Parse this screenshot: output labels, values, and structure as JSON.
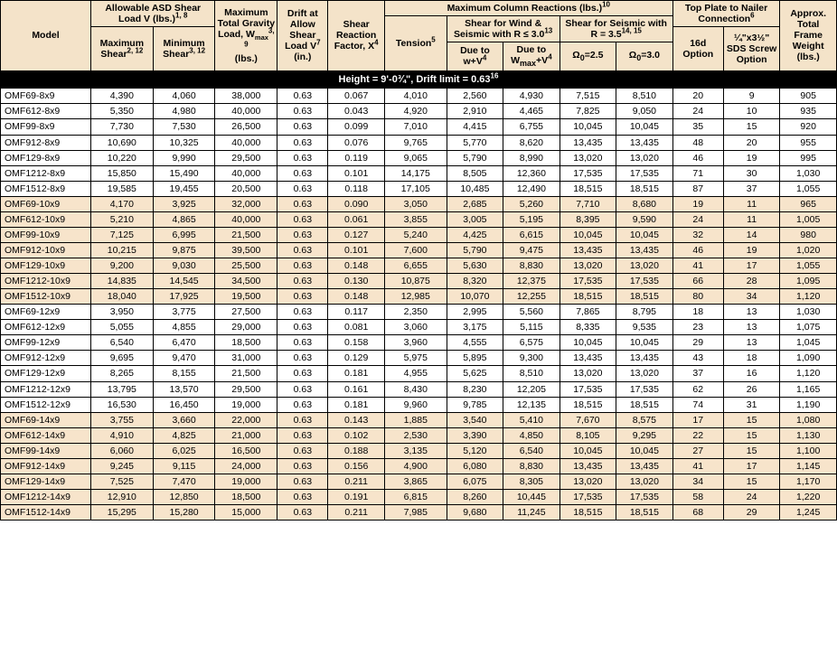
{
  "headers": {
    "model": "Model",
    "allowShear": "Allowable ASD Shear Load V (lbs.)",
    "allowShear_sup": "1, 8",
    "maxShear": "Maximum Shear",
    "maxShear_sup": "2, 12",
    "minShear": "Minimum Shear",
    "minShear_sup": "3, 12",
    "gravity_l1": "Maximum Total Gravity Load, W",
    "gravity_sub": "max",
    "gravity_sup": "3, 9",
    "gravity_l2": "(lbs.)",
    "drift_l1": "Drift at Allow Shear Load V",
    "drift_sup": "7",
    "drift_l2": "(in.)",
    "srf_l1": "Shear Reaction Factor, X",
    "srf_sup": "4",
    "maxCol": "Maximum Column Reactions (lbs.)",
    "maxCol_sup": "10",
    "tension": "Tension",
    "tension_sup": "5",
    "windSeis_l1": "Shear for Wind & Seismic with R ≤ 3.0",
    "windSeis_sup": "13",
    "due_wV": "Due to w+V",
    "due_wV_sup": "4",
    "due_wmaxV_l1": "Due to W",
    "due_wmaxV_sub": "max",
    "due_wmaxV_l2": "+V",
    "due_wmaxV_sup": "4",
    "seis35_l1": "Shear for Seismic with R = 3.5",
    "seis35_sup": "14, 15",
    "omega25_pre": "Ω",
    "omega25_sub": "0",
    "omega25_post": "=2.5",
    "omega30_pre": "Ω",
    "omega30_sub": "0",
    "omega30_post": "=3.0",
    "topPlate": "Top Plate to Nailer Connection",
    "topPlate_sup": "6",
    "opt16d": "16d Option",
    "sds": "¼\"x3½\" SDS Screw Option",
    "weight": "Approx. Total Frame Weight (lbs.)"
  },
  "section": "Height = 9'-0¾\", Drift limit = 0.63",
  "section_sup": "16",
  "styling": {
    "header_bg": "#f4e3c9",
    "shade_bg": "#f7e4cb",
    "section_bg": "#000000",
    "section_fg": "#ffffff",
    "border": "#000000",
    "font": "Arial",
    "header_fontsize": 10.5,
    "body_fontsize": 10.5
  },
  "groups": [
    {
      "shade": false,
      "rows": [
        [
          "OMF69-8x9",
          "4,390",
          "4,060",
          "38,000",
          "0.63",
          "0.067",
          "4,010",
          "2,560",
          "4,930",
          "7,515",
          "8,510",
          "20",
          "9",
          "905"
        ],
        [
          "OMF612-8x9",
          "5,350",
          "4,980",
          "40,000",
          "0.63",
          "0.043",
          "4,920",
          "2,910",
          "4,465",
          "7,825",
          "9,050",
          "24",
          "10",
          "935"
        ],
        [
          "OMF99-8x9",
          "7,730",
          "7,530",
          "26,500",
          "0.63",
          "0.099",
          "7,010",
          "4,415",
          "6,755",
          "10,045",
          "10,045",
          "35",
          "15",
          "920"
        ],
        [
          "OMF912-8x9",
          "10,690",
          "10,325",
          "40,000",
          "0.63",
          "0.076",
          "9,765",
          "5,770",
          "8,620",
          "13,435",
          "13,435",
          "48",
          "20",
          "955"
        ],
        [
          "OMF129-8x9",
          "10,220",
          "9,990",
          "29,500",
          "0.63",
          "0.119",
          "9,065",
          "5,790",
          "8,990",
          "13,020",
          "13,020",
          "46",
          "19",
          "995"
        ],
        [
          "OMF1212-8x9",
          "15,850",
          "15,490",
          "40,000",
          "0.63",
          "0.101",
          "14,175",
          "8,505",
          "12,360",
          "17,535",
          "17,535",
          "71",
          "30",
          "1,030"
        ],
        [
          "OMF1512-8x9",
          "19,585",
          "19,455",
          "20,500",
          "0.63",
          "0.118",
          "17,105",
          "10,485",
          "12,490",
          "18,515",
          "18,515",
          "87",
          "37",
          "1,055"
        ]
      ]
    },
    {
      "shade": true,
      "rows": [
        [
          "OMF69-10x9",
          "4,170",
          "3,925",
          "32,000",
          "0.63",
          "0.090",
          "3,050",
          "2,685",
          "5,260",
          "7,710",
          "8,680",
          "19",
          "11",
          "965"
        ],
        [
          "OMF612-10x9",
          "5,210",
          "4,865",
          "40,000",
          "0.63",
          "0.061",
          "3,855",
          "3,005",
          "5,195",
          "8,395",
          "9,590",
          "24",
          "11",
          "1,005"
        ],
        [
          "OMF99-10x9",
          "7,125",
          "6,995",
          "21,500",
          "0.63",
          "0.127",
          "5,240",
          "4,425",
          "6,615",
          "10,045",
          "10,045",
          "32",
          "14",
          "980"
        ],
        [
          "OMF912-10x9",
          "10,215",
          "9,875",
          "39,500",
          "0.63",
          "0.101",
          "7,600",
          "5,790",
          "9,475",
          "13,435",
          "13,435",
          "46",
          "19",
          "1,020"
        ],
        [
          "OMF129-10x9",
          "9,200",
          "9,030",
          "25,500",
          "0.63",
          "0.148",
          "6,655",
          "5,630",
          "8,830",
          "13,020",
          "13,020",
          "41",
          "17",
          "1,055"
        ],
        [
          "OMF1212-10x9",
          "14,835",
          "14,545",
          "34,500",
          "0.63",
          "0.130",
          "10,875",
          "8,320",
          "12,375",
          "17,535",
          "17,535",
          "66",
          "28",
          "1,095"
        ],
        [
          "OMF1512-10x9",
          "18,040",
          "17,925",
          "19,500",
          "0.63",
          "0.148",
          "12,985",
          "10,070",
          "12,255",
          "18,515",
          "18,515",
          "80",
          "34",
          "1,120"
        ]
      ]
    },
    {
      "shade": false,
      "rows": [
        [
          "OMF69-12x9",
          "3,950",
          "3,775",
          "27,500",
          "0.63",
          "0.117",
          "2,350",
          "2,995",
          "5,560",
          "7,865",
          "8,795",
          "18",
          "13",
          "1,030"
        ],
        [
          "OMF612-12x9",
          "5,055",
          "4,855",
          "29,000",
          "0.63",
          "0.081",
          "3,060",
          "3,175",
          "5,115",
          "8,335",
          "9,535",
          "23",
          "13",
          "1,075"
        ],
        [
          "OMF99-12x9",
          "6,540",
          "6,470",
          "18,500",
          "0.63",
          "0.158",
          "3,960",
          "4,555",
          "6,575",
          "10,045",
          "10,045",
          "29",
          "13",
          "1,045"
        ],
        [
          "OMF912-12x9",
          "9,695",
          "9,470",
          "31,000",
          "0.63",
          "0.129",
          "5,975",
          "5,895",
          "9,300",
          "13,435",
          "13,435",
          "43",
          "18",
          "1,090"
        ],
        [
          "OMF129-12x9",
          "8,265",
          "8,155",
          "21,500",
          "0.63",
          "0.181",
          "4,955",
          "5,625",
          "8,510",
          "13,020",
          "13,020",
          "37",
          "16",
          "1,120"
        ],
        [
          "OMF1212-12x9",
          "13,795",
          "13,570",
          "29,500",
          "0.63",
          "0.161",
          "8,430",
          "8,230",
          "12,205",
          "17,535",
          "17,535",
          "62",
          "26",
          "1,165"
        ],
        [
          "OMF1512-12x9",
          "16,530",
          "16,450",
          "19,000",
          "0.63",
          "0.181",
          "9,960",
          "9,785",
          "12,135",
          "18,515",
          "18,515",
          "74",
          "31",
          "1,190"
        ]
      ]
    },
    {
      "shade": true,
      "rows": [
        [
          "OMF69-14x9",
          "3,755",
          "3,660",
          "22,000",
          "0.63",
          "0.143",
          "1,885",
          "3,540",
          "5,410",
          "7,670",
          "8,575",
          "17",
          "15",
          "1,080"
        ],
        [
          "OMF612-14x9",
          "4,910",
          "4,825",
          "21,000",
          "0.63",
          "0.102",
          "2,530",
          "3,390",
          "4,850",
          "8,105",
          "9,295",
          "22",
          "15",
          "1,130"
        ],
        [
          "OMF99-14x9",
          "6,060",
          "6,025",
          "16,500",
          "0.63",
          "0.188",
          "3,135",
          "5,120",
          "6,540",
          "10,045",
          "10,045",
          "27",
          "15",
          "1,100"
        ],
        [
          "OMF912-14x9",
          "9,245",
          "9,115",
          "24,000",
          "0.63",
          "0.156",
          "4,900",
          "6,080",
          "8,830",
          "13,435",
          "13,435",
          "41",
          "17",
          "1,145"
        ],
        [
          "OMF129-14x9",
          "7,525",
          "7,470",
          "19,000",
          "0.63",
          "0.211",
          "3,865",
          "6,075",
          "8,305",
          "13,020",
          "13,020",
          "34",
          "15",
          "1,170"
        ],
        [
          "OMF1212-14x9",
          "12,910",
          "12,850",
          "18,500",
          "0.63",
          "0.191",
          "6,815",
          "8,260",
          "10,445",
          "17,535",
          "17,535",
          "58",
          "24",
          "1,220"
        ],
        [
          "OMF1512-14x9",
          "15,295",
          "15,280",
          "15,000",
          "0.63",
          "0.211",
          "7,985",
          "9,680",
          "11,245",
          "18,515",
          "18,515",
          "68",
          "29",
          "1,245"
        ]
      ]
    }
  ]
}
